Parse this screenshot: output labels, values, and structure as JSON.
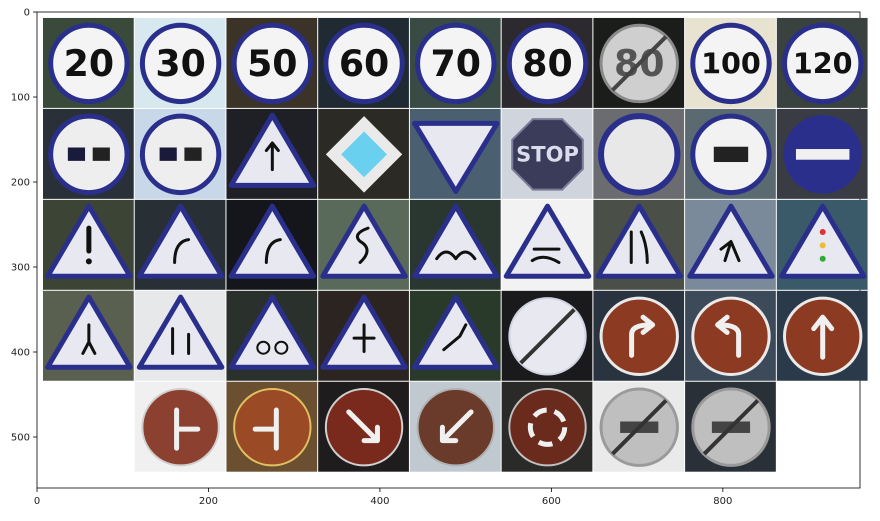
{
  "figure": {
    "x_ticks": [
      "0",
      "200",
      "400",
      "600",
      "800"
    ],
    "y_ticks": [
      "0",
      "100",
      "200",
      "300",
      "400",
      "500"
    ],
    "x_tick_values": [
      0,
      200,
      400,
      600,
      800
    ],
    "y_tick_values": [
      0,
      100,
      200,
      300,
      400,
      500
    ],
    "x_range": [
      0,
      960
    ],
    "y_range": [
      0,
      560
    ],
    "grid": "5x9 mosaic of traffic sign crops (no axis labels or title)"
  },
  "sign_texts": {
    "r0c0": "20",
    "r0c1": "30",
    "r0c2": "50",
    "r0c3": "60",
    "r0c4": "70",
    "r0c5": "80",
    "r0c6": "80",
    "r0c7": "100",
    "r0c8": "120",
    "r1c5": "STOP"
  },
  "tiles": [
    {
      "r": 0,
      "c": 0,
      "kind": "speed",
      "text_key": "r0c0",
      "bg": "#3a4a3a"
    },
    {
      "r": 0,
      "c": 1,
      "kind": "speed",
      "text_key": "r0c1",
      "bg": "#d8e8ef"
    },
    {
      "r": 0,
      "c": 2,
      "kind": "speed",
      "text_key": "r0c2",
      "bg": "#3b3228"
    },
    {
      "r": 0,
      "c": 3,
      "kind": "speed",
      "text_key": "r0c3",
      "bg": "#202a33"
    },
    {
      "r": 0,
      "c": 4,
      "kind": "speed",
      "text_key": "r0c4",
      "bg": "#3a4a44"
    },
    {
      "r": 0,
      "c": 5,
      "kind": "speed",
      "text_key": "r0c5",
      "bg": "#2c2a2e"
    },
    {
      "r": 0,
      "c": 6,
      "kind": "derestrict-speed",
      "text_key": "r0c6",
      "bg": "#1b1d1b"
    },
    {
      "r": 0,
      "c": 7,
      "kind": "speed",
      "text_key": "r0c7",
      "bg": "#e8e2d0"
    },
    {
      "r": 0,
      "c": 8,
      "kind": "speed",
      "text_key": "r0c8",
      "bg": "#3a4240"
    },
    {
      "r": 1,
      "c": 0,
      "kind": "no-overtaking",
      "bg": "#2a3038"
    },
    {
      "r": 1,
      "c": 1,
      "kind": "no-overtaking-trucks",
      "bg": "#c8d8e8"
    },
    {
      "r": 1,
      "c": 2,
      "kind": "triangle-arrow",
      "bg": "#1e2026"
    },
    {
      "r": 1,
      "c": 3,
      "kind": "priority",
      "bg": "#2b2a24"
    },
    {
      "r": 1,
      "c": 4,
      "kind": "yield",
      "bg": "#4a6070"
    },
    {
      "r": 1,
      "c": 5,
      "kind": "stop",
      "text_key": "r1c5",
      "bg": "#d0d4dc"
    },
    {
      "r": 1,
      "c": 6,
      "kind": "no-vehicles",
      "bg": "#6a6c70"
    },
    {
      "r": 1,
      "c": 7,
      "kind": "no-trucks",
      "bg": "#5a6a70"
    },
    {
      "r": 1,
      "c": 8,
      "kind": "no-entry",
      "bg": "#3a3c44"
    },
    {
      "r": 2,
      "c": 0,
      "kind": "warning-excl",
      "bg": "#3c4436"
    },
    {
      "r": 2,
      "c": 1,
      "kind": "warning-curve",
      "bg": "#283036"
    },
    {
      "r": 2,
      "c": 2,
      "kind": "triangle-curve",
      "bg": "#14161c"
    },
    {
      "r": 2,
      "c": 3,
      "kind": "warning-double-curve",
      "bg": "#5a6a5a"
    },
    {
      "r": 2,
      "c": 4,
      "kind": "warning-bumpy",
      "bg": "#2a3630"
    },
    {
      "r": 2,
      "c": 5,
      "kind": "warning-slippery",
      "bg": "#f2f2f2"
    },
    {
      "r": 2,
      "c": 6,
      "kind": "warning-narrow",
      "bg": "#4a5048"
    },
    {
      "r": 2,
      "c": 7,
      "kind": "warning-work",
      "bg": "#7a8a9a"
    },
    {
      "r": 2,
      "c": 8,
      "kind": "warning-signal",
      "bg": "#3a5a6a"
    },
    {
      "r": 3,
      "c": 0,
      "kind": "warning-pedestrian",
      "bg": "#5a6050"
    },
    {
      "r": 3,
      "c": 1,
      "kind": "warning-children",
      "bg": "#e6e8ea"
    },
    {
      "r": 3,
      "c": 2,
      "kind": "warning-bicycle",
      "bg": "#2a302c"
    },
    {
      "r": 3,
      "c": 3,
      "kind": "warning-snow",
      "bg": "#2c2420"
    },
    {
      "r": 3,
      "c": 4,
      "kind": "warning-deer",
      "bg": "#2a3a2a"
    },
    {
      "r": 3,
      "c": 5,
      "kind": "end-restriction",
      "bg": "#1a1a1c"
    },
    {
      "r": 3,
      "c": 6,
      "kind": "turn-right",
      "bg": "#2a3440"
    },
    {
      "r": 3,
      "c": 7,
      "kind": "turn-left",
      "bg": "#3c4a5a"
    },
    {
      "r": 3,
      "c": 8,
      "kind": "ahead-only",
      "bg": "#2a3a4a"
    },
    {
      "r": 4,
      "c": 1,
      "kind": "straight-or-right",
      "bg": "#f0f0f0"
    },
    {
      "r": 4,
      "c": 2,
      "kind": "straight-or-left",
      "bg": "#6a5030"
    },
    {
      "r": 4,
      "c": 3,
      "kind": "keep-right",
      "bg": "#1e1c1c"
    },
    {
      "r": 4,
      "c": 4,
      "kind": "keep-left",
      "bg": "#c0c8d0"
    },
    {
      "r": 4,
      "c": 5,
      "kind": "roundabout",
      "bg": "#2a2a28"
    },
    {
      "r": 4,
      "c": 6,
      "kind": "end-no-passing",
      "bg": "#eaeaea"
    },
    {
      "r": 4,
      "c": 7,
      "kind": "end-no-passing-trucks",
      "bg": "#2a3038"
    }
  ]
}
